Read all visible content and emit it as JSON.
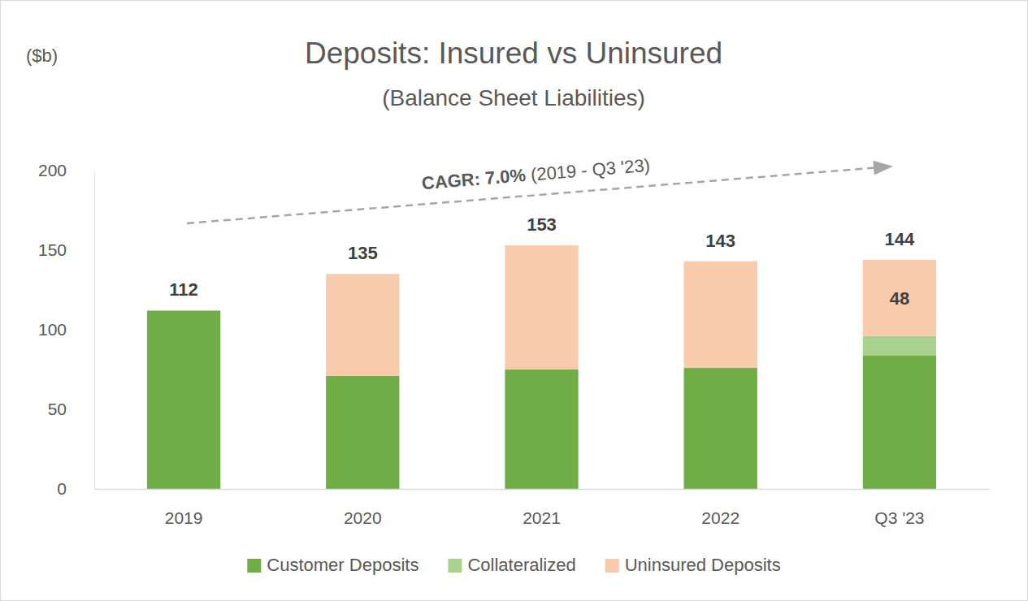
{
  "chart_data": {
    "type": "bar",
    "stacked": true,
    "title": "Deposits: Insured vs Uninsured",
    "subtitle": "(Balance Sheet Liabilities)",
    "y_label": "($b)",
    "annotations": [
      "CAGR: 7.0%",
      "(2019 - Q3 '23)"
    ],
    "categories": [
      "2019",
      "2020",
      "2021",
      "2022",
      "Q3 '23"
    ],
    "series": [
      {
        "name": "Customer Deposits",
        "color": "#70ad47",
        "values": [
          112,
          71,
          75,
          76,
          84
        ]
      },
      {
        "name": "Collateralized",
        "color": "#a9d18e",
        "values": [
          0,
          0,
          0,
          0,
          12
        ]
      },
      {
        "name": "Uninsured Deposits",
        "color": "#f8cbad",
        "values": [
          0,
          64,
          78,
          67,
          48
        ],
        "value_labels": [
          null,
          null,
          null,
          null,
          "48"
        ]
      }
    ],
    "totals": [
      112,
      135,
      153,
      143,
      144
    ],
    "ylim": [
      0,
      200
    ],
    "yticks": [
      0,
      50,
      100,
      150,
      200
    ],
    "grid": false,
    "legend": "bottom"
  }
}
